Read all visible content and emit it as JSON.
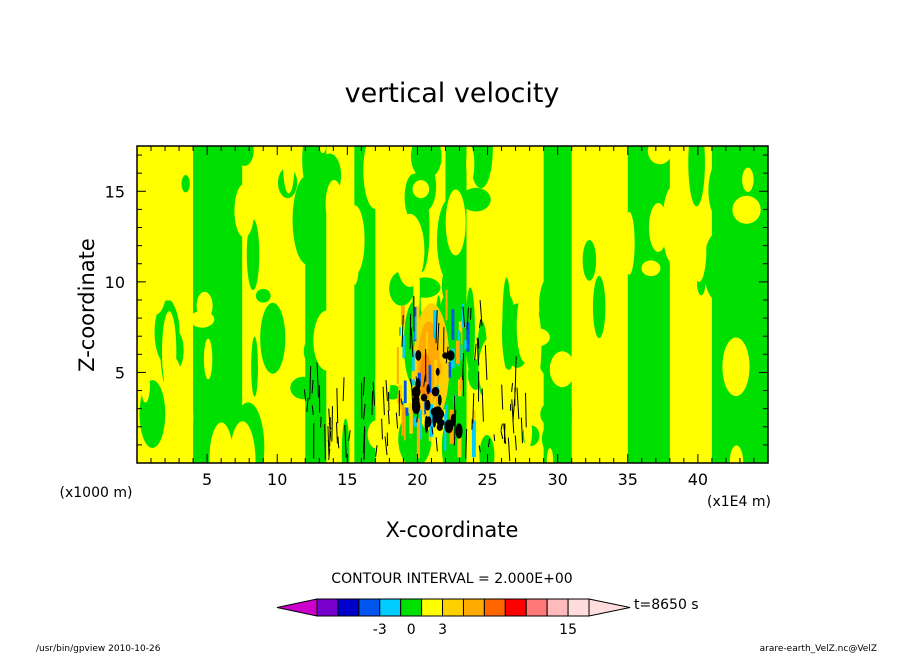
{
  "chart_data": {
    "type": "heatmap",
    "title": "vertical velocity",
    "xlabel": "X-coordinate",
    "ylabel": "Z-coordinate",
    "x_unit": "(x1E4 m)",
    "y_unit": "(x1000 m)",
    "xlim": [
      0,
      45
    ],
    "ylim": [
      0,
      17.5
    ],
    "x_ticks": [
      5,
      10,
      15,
      20,
      25,
      30,
      35,
      40
    ],
    "y_ticks": [
      5,
      10,
      15
    ],
    "contour_interval_label": "CONTOUR INTERVAL = 2.000E+00",
    "time_label": "t=8650 s",
    "colorbar": {
      "levels": [
        -9,
        -7,
        -5,
        -3,
        -1,
        1,
        3,
        5,
        7,
        9,
        11,
        13,
        15,
        17
      ],
      "tick_labels": [
        "-3",
        "0",
        "3",
        "15"
      ],
      "colors": [
        "#cc00cc",
        "#7700cc",
        "#0000cc",
        "#0055ee",
        "#00ccff",
        "#00e000",
        "#ffff00",
        "#ffd000",
        "#ffaa00",
        "#ff6600",
        "#ff0000",
        "#ff7777",
        "#ffbbbb",
        "#ffdddd"
      ]
    }
  },
  "footer": {
    "left": "/usr/bin/gpview   2010-10-26",
    "right": "arare-earth_VelZ.nc@VelZ"
  }
}
